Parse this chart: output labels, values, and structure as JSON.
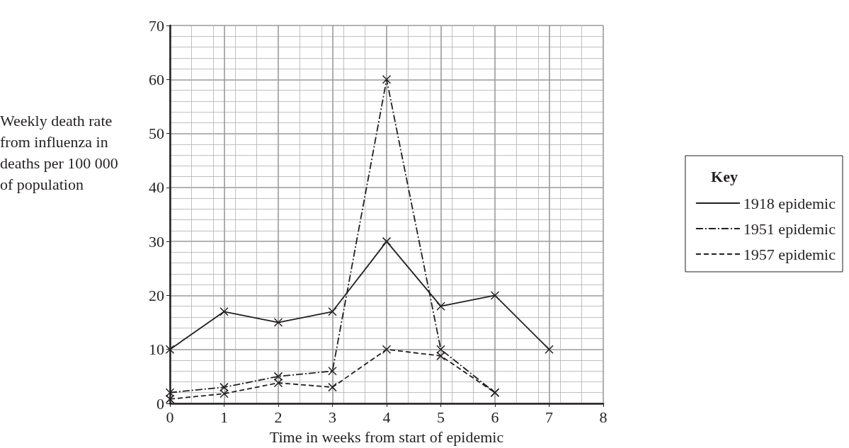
{
  "chart_data": {
    "type": "line",
    "xlabel": "Time in weeks from start of epidemic",
    "ylabel": "Weekly death rate from influenza in deaths per 100 000 of population",
    "legend_title": "Key",
    "x": [
      0,
      1,
      2,
      3,
      4,
      5,
      6,
      7
    ],
    "series": [
      {
        "name": "1918 epidemic",
        "color": "#231f20",
        "line_style": "solid",
        "values": [
          10,
          17,
          15,
          17,
          30,
          18,
          20,
          10
        ]
      },
      {
        "name": "1951 epidemic",
        "color": "#231f20",
        "line_style": "dashdot",
        "values": [
          2,
          3,
          5,
          6,
          60,
          10,
          2,
          null
        ]
      },
      {
        "name": "1957 epidemic",
        "color": "#231f20",
        "line_style": "dashed",
        "values": [
          0.8,
          1.8,
          3.8,
          3,
          10,
          8.8,
          2,
          null
        ]
      }
    ],
    "xlim": [
      0,
      8
    ],
    "xticks": [
      0,
      1,
      2,
      3,
      4,
      5,
      6,
      7,
      8
    ],
    "ylim": [
      0,
      70
    ],
    "yticks": [
      0,
      10,
      20,
      30,
      40,
      50,
      60,
      70
    ],
    "grid": true,
    "legend": "right",
    "marker": "cross"
  }
}
